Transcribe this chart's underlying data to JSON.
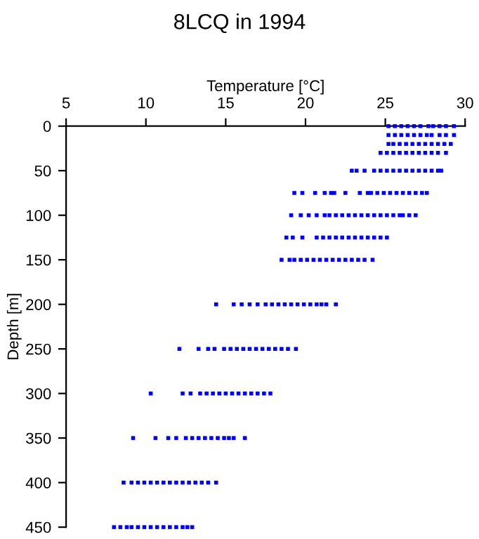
{
  "chart_data": {
    "type": "scatter",
    "title": "8LCQ in 1994",
    "xlabel": "Temperature [°C]",
    "ylabel": "Depth [m]",
    "xlim": [
      5,
      30
    ],
    "xticks": [
      5,
      10,
      15,
      20,
      25,
      30
    ],
    "ylim": [
      450,
      0
    ],
    "yticks": [
      0,
      50,
      100,
      150,
      200,
      250,
      300,
      350,
      400,
      450
    ],
    "grid": false,
    "legend": false,
    "marker": "square",
    "series": [
      {
        "color": "#0000ff",
        "x": [
          25.2,
          25.6,
          26.0,
          26.4,
          26.8,
          27.2,
          27.7,
          28.0,
          28.4,
          28.8,
          29.3
        ],
        "values": [
          0,
          0,
          0,
          0,
          0,
          0,
          0,
          0,
          0,
          0,
          0
        ]
      },
      {
        "color": "#0000ff",
        "x": [
          25.2,
          25.6,
          26.0,
          26.4,
          26.8,
          27.2,
          27.6,
          27.9,
          28.4,
          28.8,
          29.3
        ],
        "values": [
          10,
          10,
          10,
          10,
          10,
          10,
          10,
          10,
          10,
          10,
          10
        ]
      },
      {
        "color": "#0000ff",
        "x": [
          25.2,
          25.5,
          25.9,
          26.3,
          26.7,
          27.1,
          27.5,
          27.9,
          28.3,
          28.7,
          29.1
        ],
        "values": [
          20,
          20,
          20,
          20,
          20,
          20,
          20,
          20,
          20,
          20,
          20
        ]
      },
      {
        "color": "#0000ff",
        "x": [
          24.7,
          25.1,
          25.5,
          25.9,
          26.3,
          26.7,
          27.1,
          27.5,
          27.9,
          28.3,
          28.8
        ],
        "values": [
          30,
          30,
          30,
          30,
          30,
          30,
          30,
          30,
          30,
          30,
          30
        ]
      },
      {
        "color": "#0000ff",
        "x": [
          22.9,
          23.2,
          23.7,
          24.3,
          24.7,
          25.1,
          25.5,
          25.9,
          26.3,
          26.7,
          27.1,
          27.5,
          27.9,
          28.3,
          28.5
        ],
        "values": [
          50,
          50,
          50,
          50,
          50,
          50,
          50,
          50,
          50,
          50,
          50,
          50,
          50,
          50,
          50
        ]
      },
      {
        "color": "#0000ff",
        "x": [
          19.3,
          19.8,
          20.6,
          21.2,
          21.6,
          21.8,
          22.5,
          23.4,
          23.9,
          24.1,
          24.5,
          24.9,
          25.3,
          25.7,
          26.1,
          26.5,
          26.9,
          27.3,
          27.6
        ],
        "values": [
          75,
          75,
          75,
          75,
          75,
          75,
          75,
          75,
          75,
          75,
          75,
          75,
          75,
          75,
          75,
          75,
          75,
          75,
          75
        ]
      },
      {
        "color": "#0000ff",
        "x": [
          19.1,
          19.7,
          20.2,
          20.7,
          21.2,
          21.5,
          21.9,
          22.3,
          22.7,
          23.1,
          23.5,
          23.9,
          24.3,
          24.7,
          25.1,
          25.5,
          25.9,
          26.1,
          26.5,
          26.9
        ],
        "values": [
          100,
          100,
          100,
          100,
          100,
          100,
          100,
          100,
          100,
          100,
          100,
          100,
          100,
          100,
          100,
          100,
          100,
          100,
          100,
          100
        ]
      },
      {
        "color": "#0000ff",
        "x": [
          18.8,
          19.2,
          19.8,
          20.7,
          21.1,
          21.5,
          21.9,
          22.3,
          22.7,
          23.1,
          23.5,
          23.9,
          24.3,
          24.7,
          25.1
        ],
        "values": [
          125,
          125,
          125,
          125,
          125,
          125,
          125,
          125,
          125,
          125,
          125,
          125,
          125,
          125,
          125
        ]
      },
      {
        "color": "#0000ff",
        "x": [
          18.5,
          19.0,
          19.3,
          19.7,
          20.1,
          20.5,
          20.9,
          21.3,
          21.7,
          22.1,
          22.5,
          22.9,
          23.3,
          23.7,
          24.2
        ],
        "values": [
          150,
          150,
          150,
          150,
          150,
          150,
          150,
          150,
          150,
          150,
          150,
          150,
          150,
          150,
          150
        ]
      },
      {
        "color": "#0000ff",
        "x": [
          14.4,
          15.5,
          16.0,
          16.5,
          17.0,
          17.5,
          17.9,
          18.3,
          18.7,
          19.1,
          19.5,
          19.9,
          20.3,
          20.7,
          21.0,
          21.3,
          21.9
        ],
        "values": [
          200,
          200,
          200,
          200,
          200,
          200,
          200,
          200,
          200,
          200,
          200,
          200,
          200,
          200,
          200,
          200,
          200
        ]
      },
      {
        "color": "#0000ff",
        "x": [
          12.1,
          13.3,
          13.9,
          14.3,
          14.9,
          15.3,
          15.7,
          16.1,
          16.5,
          16.9,
          17.3,
          17.7,
          18.1,
          18.5,
          18.9,
          19.4
        ],
        "values": [
          250,
          250,
          250,
          250,
          250,
          250,
          250,
          250,
          250,
          250,
          250,
          250,
          250,
          250,
          250,
          250
        ]
      },
      {
        "color": "#0000ff",
        "x": [
          10.3,
          12.3,
          12.8,
          13.4,
          13.8,
          14.2,
          14.6,
          15.0,
          15.4,
          15.8,
          16.2,
          16.6,
          17.0,
          17.4,
          17.8
        ],
        "values": [
          300,
          300,
          300,
          300,
          300,
          300,
          300,
          300,
          300,
          300,
          300,
          300,
          300,
          300,
          300
        ]
      },
      {
        "color": "#0000ff",
        "x": [
          9.2,
          10.6,
          11.4,
          11.9,
          12.5,
          12.9,
          13.3,
          13.7,
          14.1,
          14.5,
          14.9,
          15.2,
          15.5,
          16.2
        ],
        "values": [
          350,
          350,
          350,
          350,
          350,
          350,
          350,
          350,
          350,
          350,
          350,
          350,
          350,
          350
        ]
      },
      {
        "color": "#0000ff",
        "x": [
          8.6,
          9.1,
          9.5,
          9.9,
          10.3,
          10.7,
          11.1,
          11.5,
          11.9,
          12.3,
          12.7,
          13.1,
          13.5,
          13.9,
          14.4
        ],
        "values": [
          400,
          400,
          400,
          400,
          400,
          400,
          400,
          400,
          400,
          400,
          400,
          400,
          400,
          400,
          400
        ]
      },
      {
        "color": "#0000ff",
        "x": [
          8.0,
          8.4,
          8.8,
          9.1,
          9.5,
          9.9,
          10.3,
          10.7,
          11.1,
          11.5,
          11.9,
          12.3,
          12.6,
          12.9
        ],
        "values": [
          450,
          450,
          450,
          450,
          450,
          450,
          450,
          450,
          450,
          450,
          450,
          450,
          450,
          450
        ]
      }
    ]
  }
}
